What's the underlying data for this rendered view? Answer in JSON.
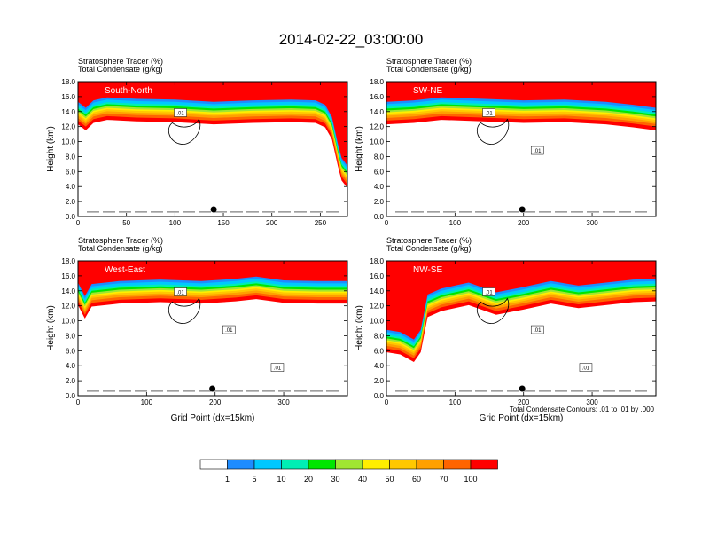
{
  "main_title": "2014-02-22_03:00:00",
  "colorbar": {
    "colors": [
      "#ffffff",
      "#1e8cff",
      "#00c8ff",
      "#00eeb4",
      "#00e600",
      "#a0e632",
      "#ffee00",
      "#ffc800",
      "#ffa000",
      "#ff6400",
      "#ff0000"
    ],
    "labels": [
      "1",
      "5",
      "10",
      "20",
      "30",
      "40",
      "50",
      "60",
      "70",
      "100"
    ]
  },
  "footnote": "Total Condensate Contours: .01 to .01 by .000",
  "chart_data": [
    {
      "type": "heatmap",
      "title_line1": "Stratosphere Tracer   (%)",
      "title_line2": "Total Condensate   (g/kg)",
      "panel_label": "South-North",
      "ylabel": "Height (km)",
      "xlabel": "",
      "xlim": [
        0,
        278
      ],
      "ylim": [
        0,
        18
      ],
      "xticks": [
        0,
        50,
        100,
        150,
        200,
        250
      ],
      "yticks": [
        "0.0",
        "2.0",
        "4.0",
        "6.0",
        "8.0",
        "10.0",
        "12.0",
        "14.0",
        "16.0",
        "18.0"
      ],
      "contour_labels": [
        ".01"
      ],
      "marker_x": 140,
      "tracer_band": [
        [
          0,
          15.0
        ],
        [
          8,
          14.2
        ],
        [
          16,
          15.2
        ],
        [
          30,
          15.6
        ],
        [
          60,
          15.4
        ],
        [
          100,
          15.3
        ],
        [
          140,
          15.0
        ],
        [
          180,
          15.2
        ],
        [
          220,
          15.3
        ],
        [
          245,
          15.2
        ],
        [
          255,
          14.6
        ],
        [
          262,
          13.0
        ],
        [
          268,
          9.5
        ],
        [
          272,
          7.5
        ],
        [
          278,
          6.5
        ]
      ]
    },
    {
      "type": "heatmap",
      "title_line1": "Stratosphere Tracer   (%)",
      "title_line2": "Total Condensate   (g/kg)",
      "panel_label": "SW-NE",
      "ylabel": "Height (km)",
      "xlabel": "",
      "xlim": [
        0,
        393
      ],
      "ylim": [
        0,
        18
      ],
      "xticks": [
        0,
        100,
        200,
        300
      ],
      "yticks": [
        "0.0",
        "2.0",
        "4.0",
        "6.0",
        "8.0",
        "10.0",
        "12.0",
        "14.0",
        "16.0",
        "18.0"
      ],
      "contour_labels": [
        ".01",
        ".01"
      ],
      "marker_x": 198,
      "tracer_band": [
        [
          0,
          15.0
        ],
        [
          40,
          15.2
        ],
        [
          80,
          15.6
        ],
        [
          140,
          15.4
        ],
        [
          200,
          15.2
        ],
        [
          260,
          15.3
        ],
        [
          320,
          15.0
        ],
        [
          360,
          14.6
        ],
        [
          393,
          14.2
        ]
      ]
    },
    {
      "type": "heatmap",
      "title_line1": "Stratosphere Tracer   (%)",
      "title_line2": "Total Condensate   (g/kg)",
      "panel_label": "West-East",
      "ylabel": "Height (km)",
      "xlabel": "Grid Point (dx=15km)",
      "xlim": [
        0,
        393
      ],
      "ylim": [
        0,
        18
      ],
      "xticks": [
        0,
        100,
        200,
        300
      ],
      "yticks": [
        "0.0",
        "2.0",
        "4.0",
        "6.0",
        "8.0",
        "10.0",
        "12.0",
        "14.0",
        "16.0",
        "18.0"
      ],
      "contour_labels": [
        ".01",
        ".01",
        ".01"
      ],
      "marker_x": 196,
      "tracer_band": [
        [
          0,
          14.8
        ],
        [
          10,
          13.0
        ],
        [
          20,
          14.6
        ],
        [
          60,
          15.0
        ],
        [
          120,
          15.2
        ],
        [
          180,
          15.0
        ],
        [
          230,
          15.3
        ],
        [
          260,
          15.6
        ],
        [
          300,
          15.1
        ],
        [
          350,
          15.0
        ],
        [
          393,
          15.0
        ]
      ]
    },
    {
      "type": "heatmap",
      "title_line1": "Stratosphere Tracer   (%)",
      "title_line2": "Total Condensate   (g/kg)",
      "panel_label": "NW-SE",
      "ylabel": "Height (km)",
      "xlabel": "Grid Point (dx=15km)",
      "xlim": [
        0,
        393
      ],
      "ylim": [
        0,
        18
      ],
      "xticks": [
        0,
        100,
        200,
        300
      ],
      "yticks": [
        "0.0",
        "2.0",
        "4.0",
        "6.0",
        "8.0",
        "10.0",
        "12.0",
        "14.0",
        "16.0",
        "18.0"
      ],
      "contour_labels": [
        ".01",
        ".01",
        ".01"
      ],
      "marker_x": 198,
      "tracer_band": [
        [
          0,
          8.5
        ],
        [
          20,
          8.2
        ],
        [
          40,
          7.2
        ],
        [
          50,
          8.5
        ],
        [
          60,
          13.2
        ],
        [
          80,
          14.0
        ],
        [
          120,
          14.8
        ],
        [
          160,
          13.5
        ],
        [
          200,
          14.2
        ],
        [
          240,
          15.0
        ],
        [
          280,
          14.4
        ],
        [
          320,
          14.8
        ],
        [
          360,
          15.2
        ],
        [
          393,
          15.3
        ]
      ]
    }
  ]
}
